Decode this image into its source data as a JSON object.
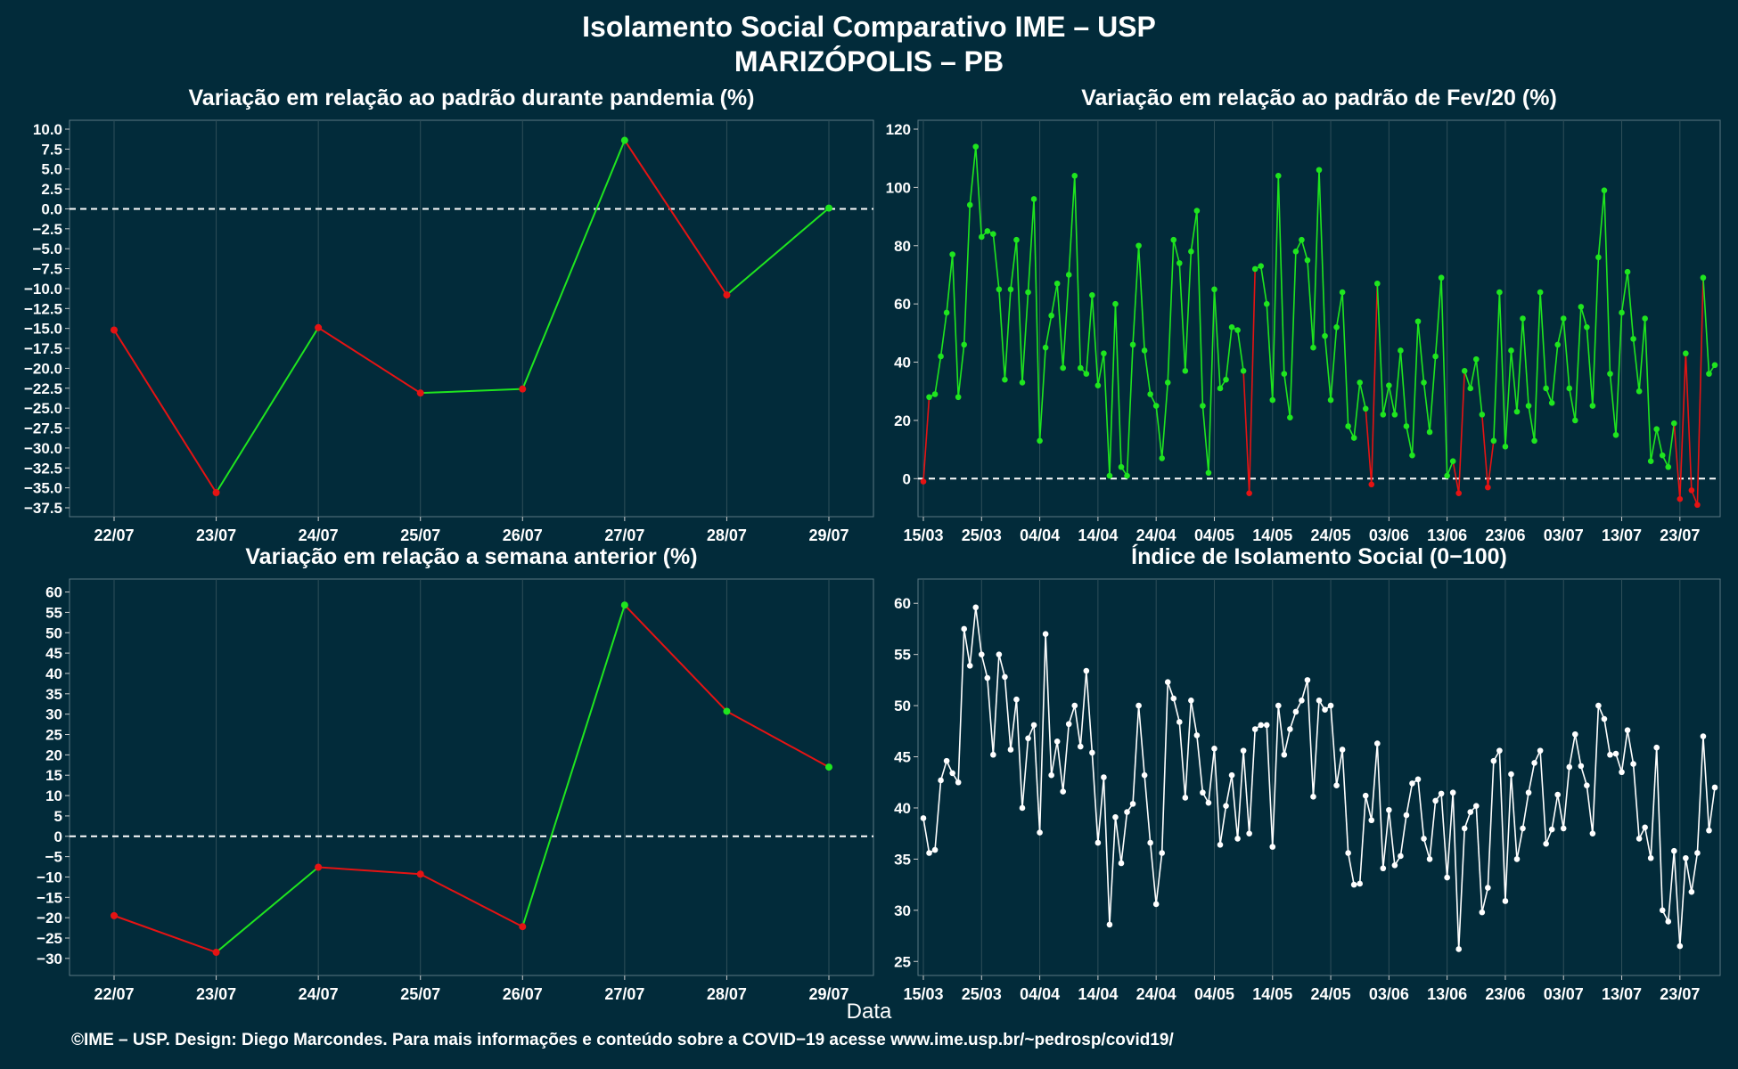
{
  "header": {
    "title": "Isolamento Social Comparativo IME – USP",
    "subtitle": "MARIZÓPOLIS – PB"
  },
  "xlabel": "Data",
  "footer": "©IME – USP. Design: Diego Marcondes. Para mais informações e conteúdo sobre a COVID−19 acesse www.ime.usp.br/~pedrosp/covid19/",
  "colors": {
    "background": "#022b3a",
    "up": "#1fe51f",
    "down": "#e51313",
    "index": "#ffffff",
    "grid": "#2f4f59"
  },
  "chart_data": [
    {
      "id": "pandemia",
      "type": "line",
      "title": "Variação em relação ao padrão durante pandemia (%)",
      "categories": [
        "22/07",
        "23/07",
        "24/07",
        "25/07",
        "26/07",
        "27/07",
        "28/07",
        "29/07"
      ],
      "values": [
        -15.2,
        -35.6,
        -14.9,
        -23.1,
        -22.6,
        8.6,
        -10.8,
        0.1
      ],
      "ylim": [
        -37.5,
        10.0
      ],
      "yticks": [
        "10.0",
        "7.5",
        "5.0",
        "2.5",
        "0.0",
        "−2.5",
        "−5.0",
        "−7.5",
        "−10.0",
        "−12.5",
        "−15.0",
        "−17.5",
        "−20.0",
        "−22.5",
        "−25.0",
        "−27.5",
        "−30.0",
        "−32.5",
        "−35.0",
        "−37.5"
      ],
      "reference_line": 0
    },
    {
      "id": "fev20",
      "type": "line",
      "title": "Variação em relação ao padrão de Fev/20 (%)",
      "x_start": "15/03",
      "xticks": [
        "15/03",
        "25/03",
        "04/04",
        "14/04",
        "24/04",
        "04/05",
        "14/05",
        "24/05",
        "03/06",
        "13/06",
        "23/06",
        "03/07",
        "13/07",
        "23/07"
      ],
      "values": [
        -1,
        28,
        29,
        42,
        57,
        77,
        28,
        46,
        94,
        114,
        83,
        85,
        84,
        65,
        34,
        65,
        82,
        33,
        64,
        96,
        13,
        45,
        56,
        67,
        38,
        70,
        104,
        38,
        36,
        63,
        32,
        43,
        1,
        60,
        4,
        1,
        46,
        80,
        44,
        29,
        25,
        7,
        33,
        82,
        74,
        37,
        78,
        92,
        25,
        2,
        65,
        31,
        34,
        52,
        51,
        37,
        -5,
        72,
        73,
        60,
        27,
        104,
        36,
        21,
        78,
        82,
        75,
        45,
        106,
        49,
        27,
        52,
        64,
        18,
        14,
        33,
        24,
        -2,
        67,
        22,
        32,
        22,
        44,
        18,
        8,
        54,
        33,
        16,
        42,
        69,
        1,
        6,
        -5,
        37,
        31,
        41,
        22,
        -3,
        13,
        64,
        11,
        44,
        23,
        55,
        25,
        13,
        64,
        31,
        26,
        46,
        55,
        31,
        20,
        59,
        52,
        25,
        76,
        99,
        36,
        15,
        57,
        71,
        48,
        30,
        55,
        6,
        17,
        8,
        4,
        19,
        -7,
        43,
        -4,
        -9,
        69,
        36,
        39
      ],
      "ylim": [
        -10,
        120
      ],
      "yticks": [
        "0",
        "20",
        "40",
        "60",
        "80",
        "100",
        "120"
      ],
      "reference_line": 0
    },
    {
      "id": "semana",
      "type": "line",
      "title": "Variação em relação a semana anterior (%)",
      "categories": [
        "22/07",
        "23/07",
        "24/07",
        "25/07",
        "26/07",
        "27/07",
        "28/07",
        "29/07"
      ],
      "values": [
        -19.5,
        -28.5,
        -7.6,
        -9.3,
        -22.2,
        56.8,
        30.7,
        17.0
      ],
      "ylim": [
        -32,
        61
      ],
      "yticks": [
        "60",
        "55",
        "50",
        "45",
        "40",
        "35",
        "30",
        "25",
        "20",
        "15",
        "10",
        "5",
        "0",
        "−5",
        "−10",
        "−15",
        "−20",
        "−25",
        "−30"
      ],
      "reference_line": 0
    },
    {
      "id": "indice",
      "type": "line",
      "title": "Índice de Isolamento Social (0−100)",
      "x_start": "15/03",
      "xticks": [
        "15/03",
        "25/03",
        "04/04",
        "14/04",
        "24/04",
        "04/05",
        "14/05",
        "24/05",
        "03/06",
        "13/06",
        "23/06",
        "03/07",
        "13/07",
        "23/07"
      ],
      "values": [
        39,
        35.6,
        35.9,
        42.7,
        44.6,
        43.4,
        42.5,
        57.5,
        53.9,
        59.6,
        55,
        52.7,
        45.2,
        55,
        52.8,
        45.7,
        50.6,
        40,
        46.8,
        48.1,
        37.6,
        57,
        43.2,
        46.5,
        41.6,
        48.2,
        50,
        46,
        53.4,
        45.4,
        36.6,
        43,
        28.6,
        39.1,
        34.6,
        39.6,
        40.4,
        50,
        43.2,
        36.6,
        30.6,
        35.6,
        52.3,
        50.7,
        48.4,
        41,
        50.5,
        47.1,
        41.5,
        40.5,
        45.8,
        36.4,
        40.2,
        43.2,
        37,
        45.6,
        37.5,
        47.7,
        48.1,
        48.1,
        36.2,
        50,
        45.2,
        47.7,
        49.4,
        50.5,
        52.5,
        41.1,
        50.5,
        49.6,
        50,
        42.2,
        45.7,
        35.6,
        32.5,
        32.6,
        41.2,
        38.8,
        46.3,
        34.1,
        39.8,
        34.4,
        35.3,
        39.3,
        42.4,
        42.8,
        37,
        35,
        40.7,
        41.4,
        33.2,
        41.5,
        26.2,
        38,
        39.6,
        40.2,
        29.8,
        32.2,
        44.6,
        45.6,
        30.9,
        43.3,
        35,
        38,
        41.5,
        44.4,
        45.6,
        36.5,
        37.9,
        41.3,
        38,
        44,
        47.2,
        44.1,
        42.2,
        37.5,
        50,
        48.7,
        45.2,
        45.3,
        43.5,
        47.6,
        44.3,
        37,
        38.1,
        35.1,
        45.9,
        30,
        28.9,
        35.8,
        26.5,
        35.1,
        31.8,
        35.6,
        47,
        37.8,
        42
      ],
      "ylim": [
        24.5,
        61.5
      ],
      "yticks": [
        "25",
        "30",
        "35",
        "40",
        "45",
        "50",
        "55",
        "60"
      ]
    }
  ]
}
